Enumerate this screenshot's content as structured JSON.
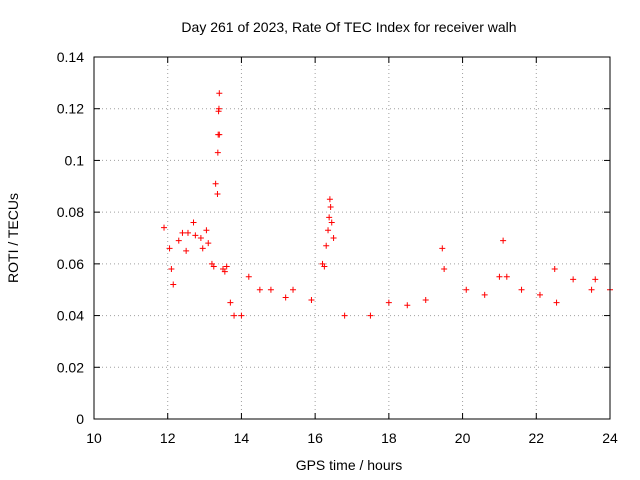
{
  "chart_data": {
    "type": "scatter",
    "title": "Day 261 of 2023, Rate Of TEC Index for receiver walh",
    "xlabel": "GPS time / hours",
    "ylabel": "ROTI / TECUs",
    "xlim": [
      10,
      24
    ],
    "ylim": [
      0,
      0.14
    ],
    "xticks": [
      10,
      12,
      14,
      16,
      18,
      20,
      22,
      24
    ],
    "xtick_labels": [
      "10",
      "12",
      "14",
      "16",
      "18",
      "20",
      "22",
      "24"
    ],
    "yticks": [
      0,
      0.02,
      0.04,
      0.06,
      0.08,
      0.1,
      0.12,
      0.14
    ],
    "ytick_labels": [
      "0",
      "0.02",
      "0.04",
      "0.06",
      "0.08",
      "0.1",
      "0.12",
      "0.14"
    ],
    "grid": true,
    "marker": "+",
    "series": [
      {
        "name": "ROTI",
        "color": "#ff0000",
        "x": [
          11.9,
          12.05,
          12.1,
          12.15,
          12.3,
          12.4,
          12.5,
          12.55,
          12.7,
          12.75,
          12.9,
          12.95,
          13.05,
          13.1,
          13.2,
          13.25,
          13.3,
          13.35,
          13.36,
          13.37,
          13.38,
          13.39,
          13.4,
          13.4,
          13.5,
          13.55,
          13.6,
          13.7,
          13.8,
          14.0,
          14.2,
          14.5,
          14.8,
          15.2,
          15.4,
          15.9,
          16.2,
          16.25,
          16.3,
          16.35,
          16.38,
          16.4,
          16.42,
          16.45,
          16.5,
          16.8,
          17.5,
          18.0,
          18.5,
          19.0,
          19.45,
          19.5,
          20.1,
          20.6,
          21.0,
          21.1,
          21.2,
          21.6,
          22.1,
          22.5,
          22.55,
          23.0,
          23.5,
          23.6,
          24.0
        ],
        "y": [
          0.074,
          0.066,
          0.058,
          0.052,
          0.069,
          0.072,
          0.065,
          0.072,
          0.076,
          0.071,
          0.07,
          0.066,
          0.073,
          0.068,
          0.06,
          0.059,
          0.091,
          0.087,
          0.103,
          0.11,
          0.119,
          0.12,
          0.126,
          0.11,
          0.058,
          0.057,
          0.059,
          0.045,
          0.04,
          0.04,
          0.055,
          0.05,
          0.05,
          0.047,
          0.05,
          0.046,
          0.06,
          0.059,
          0.067,
          0.073,
          0.078,
          0.085,
          0.082,
          0.076,
          0.07,
          0.04,
          0.04,
          0.045,
          0.044,
          0.046,
          0.066,
          0.058,
          0.05,
          0.048,
          0.055,
          0.069,
          0.055,
          0.05,
          0.048,
          0.058,
          0.045,
          0.054,
          0.05,
          0.054,
          0.05
        ]
      }
    ]
  }
}
